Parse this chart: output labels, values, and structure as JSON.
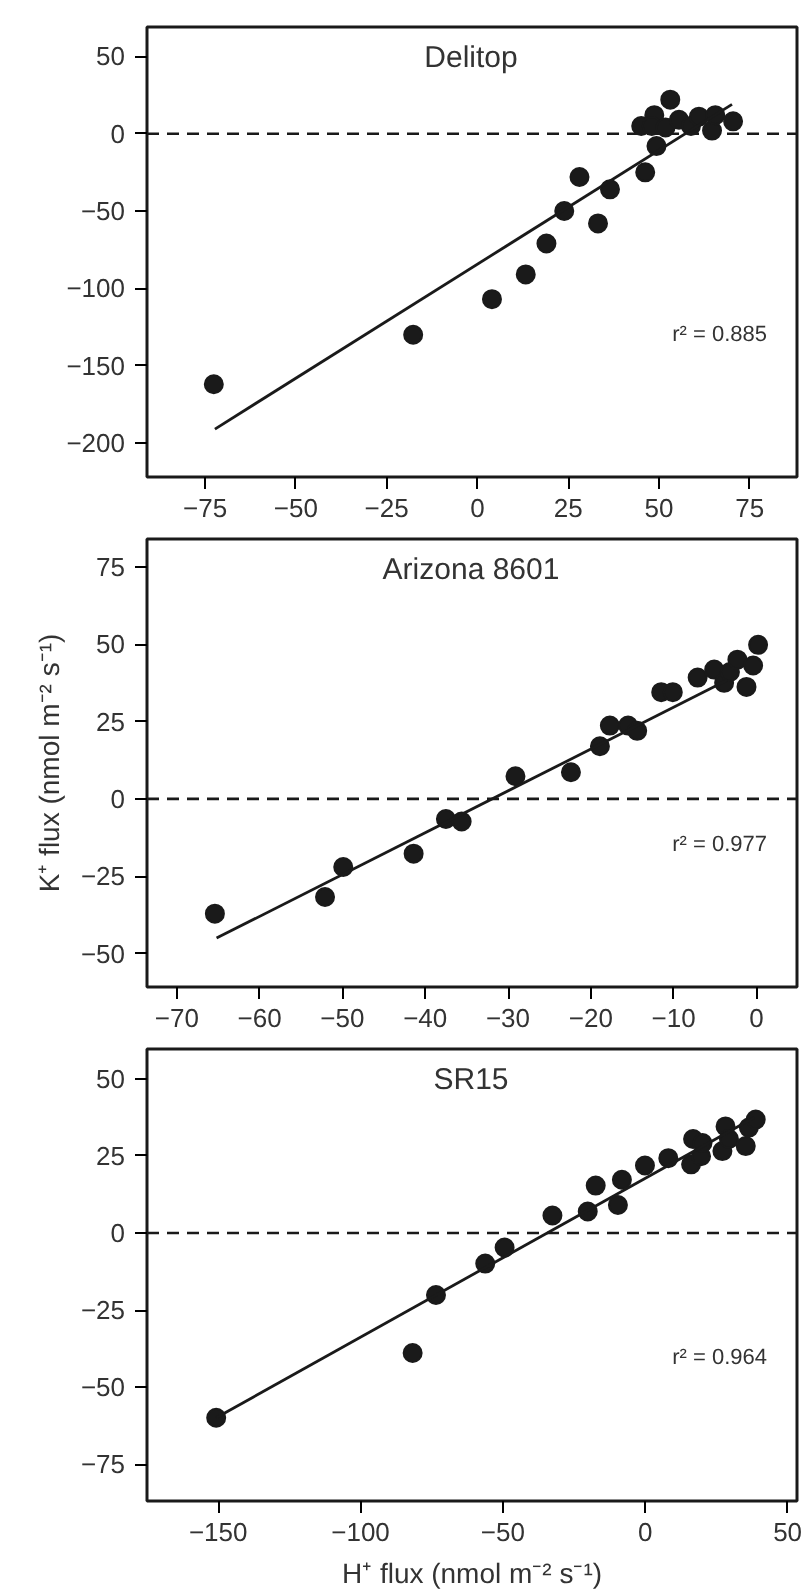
{
  "chart_data": [
    {
      "type": "scatter",
      "title": "Delitop",
      "xlim": [
        -91,
        88
      ],
      "ylim": [
        -222,
        69
      ],
      "xticks": [
        -75,
        -50,
        -25,
        0,
        25,
        50,
        75
      ],
      "yticks": [
        -200,
        -150,
        -100,
        -50,
        0,
        50
      ],
      "grid": false,
      "annotations": [
        "r² = 0.885"
      ],
      "ref_lines": [
        {
          "axis": "y",
          "value": 0,
          "label": null,
          "color": "#1a1a1a",
          "line_style": "dashed"
        }
      ],
      "series": [
        {
          "marker": "circle",
          "color": "#1a1a1a",
          "x": [
            -72.6,
            -17.7,
            4.0,
            13.3,
            19.0,
            23.9,
            28.1,
            33.2,
            36.5,
            46.2,
            45.1,
            48.7,
            49.3,
            48.0,
            51.8,
            53.1,
            55.5,
            58.8,
            61.0,
            64.6,
            65.5,
            70.4
          ],
          "values": [
            -162,
            -130,
            -107,
            -91,
            -71,
            -50,
            -28,
            -58,
            -36,
            -25,
            5,
            12,
            -8,
            5,
            4,
            22,
            9,
            5,
            11,
            2,
            12,
            8
          ]
        },
        {
          "type": "line",
          "marker": "none",
          "color": "#1a1a1a",
          "line_style": "solid",
          "x": [
            -72.3,
            70.1
          ],
          "values": [
            -191,
            19
          ]
        }
      ]
    },
    {
      "type": "scatter",
      "title": "Arizona 8601",
      "ylabel": "K⁺ flux (nmol m⁻² s⁻¹)",
      "xlim": [
        -73.6,
        4.9
      ],
      "ylim": [
        -60.8,
        84
      ],
      "xticks": [
        -70,
        -60,
        -50,
        -40,
        -30,
        -20,
        -10,
        0
      ],
      "yticks": [
        -50,
        -25,
        0,
        25,
        50,
        75
      ],
      "grid": false,
      "annotations": [
        "r² = 0.977"
      ],
      "ref_lines": [
        {
          "axis": "y",
          "value": 0,
          "label": null,
          "color": "#1a1a1a",
          "line_style": "dashed"
        }
      ],
      "series": [
        {
          "marker": "circle",
          "color": "#1a1a1a",
          "x": [
            -65.4,
            -52.1,
            -49.9,
            -41.4,
            -37.5,
            -35.6,
            -29.1,
            -22.4,
            -18.9,
            -17.7,
            -15.5,
            -14.4,
            -11.5,
            -10.1,
            -7.1,
            -5.1,
            -3.9,
            -3.2,
            -2.3,
            -1.2,
            -0.4,
            0.2
          ],
          "values": [
            -37.1,
            -31.7,
            -22,
            -17.7,
            -6.5,
            -7.3,
            7.3,
            8.6,
            17,
            23.7,
            23.7,
            22,
            34.5,
            34.5,
            39.2,
            41.8,
            37.5,
            41,
            45,
            36.2,
            43.1,
            49.8
          ]
        },
        {
          "type": "line",
          "marker": "none",
          "color": "#1a1a1a",
          "line_style": "solid",
          "x": [
            -65.2,
            -3.5
          ],
          "values": [
            -45,
            38.4
          ]
        }
      ]
    },
    {
      "type": "scatter",
      "title": "SR15",
      "xlabel": "H⁺ flux (nmol m⁻² s⁻¹)",
      "xlim": [
        -175,
        53.3
      ],
      "ylim": [
        -86.9,
        59.7
      ],
      "xticks": [
        -150,
        -100,
        -50,
        0,
        50
      ],
      "yticks": [
        -75,
        -50,
        -25,
        0,
        25,
        50
      ],
      "grid": false,
      "annotations": [
        "r² = 0.964"
      ],
      "ref_lines": [
        {
          "axis": "y",
          "value": 0,
          "label": null,
          "color": "#1a1a1a",
          "line_style": "dashed"
        }
      ],
      "series": [
        {
          "marker": "circle",
          "color": "#1a1a1a",
          "x": [
            -150.7,
            -81.7,
            -73.5,
            -56.2,
            -49.4,
            -32.6,
            -20.2,
            -17.4,
            -9.6,
            -8.2,
            -0.1,
            8.1,
            16.1,
            16.8,
            19.6,
            20.1,
            27.1,
            28.2,
            29.4,
            35.3,
            36.4,
            38.8
          ],
          "values": [
            -59.9,
            -38.9,
            -20.1,
            -9.9,
            -4.7,
            5.7,
            7,
            15.4,
            9.1,
            17.3,
            21.9,
            24.3,
            22.3,
            30.5,
            24.9,
            29.2,
            26.6,
            34.6,
            30.5,
            28.2,
            34.2,
            36.8
          ]
        },
        {
          "type": "line",
          "marker": "none",
          "color": "#1a1a1a",
          "line_style": "solid",
          "x": [
            -150.7,
            38.3
          ],
          "values": [
            -59.9,
            37.5
          ]
        }
      ]
    }
  ]
}
